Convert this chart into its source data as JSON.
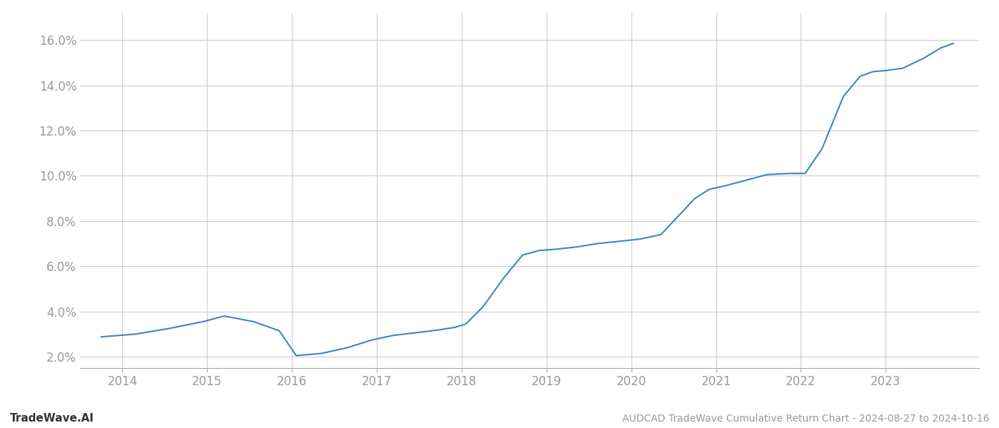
{
  "x_data": [
    2013.75,
    2014.15,
    2014.55,
    2014.95,
    2015.2,
    2015.55,
    2015.85,
    2016.05,
    2016.35,
    2016.65,
    2016.95,
    2017.2,
    2017.55,
    2017.75,
    2017.92,
    2018.05,
    2018.25,
    2018.5,
    2018.72,
    2018.92,
    2019.1,
    2019.35,
    2019.6,
    2019.85,
    2020.1,
    2020.35,
    2020.55,
    2020.75,
    2020.92,
    2021.1,
    2021.3,
    2021.6,
    2021.85,
    2022.05,
    2022.25,
    2022.5,
    2022.7,
    2022.85,
    2023.0,
    2023.2,
    2023.45,
    2023.65,
    2023.8
  ],
  "y_data": [
    2.88,
    3.0,
    3.25,
    3.55,
    3.8,
    3.55,
    3.15,
    2.05,
    2.15,
    2.4,
    2.75,
    2.95,
    3.1,
    3.2,
    3.3,
    3.45,
    4.2,
    5.5,
    6.5,
    6.7,
    6.75,
    6.85,
    7.0,
    7.1,
    7.2,
    7.4,
    8.2,
    9.0,
    9.4,
    9.55,
    9.75,
    10.05,
    10.1,
    10.1,
    11.2,
    13.5,
    14.4,
    14.6,
    14.65,
    14.75,
    15.2,
    15.65,
    15.85
  ],
  "line_color": "#3a86c8",
  "line_width": 1.5,
  "background_color": "#ffffff",
  "grid_color": "#cccccc",
  "tick_color": "#999999",
  "spine_color": "#aaaaaa",
  "title_text": "AUDCAD TradeWave Cumulative Return Chart - 2024-08-27 to 2024-10-16",
  "footer_left": "TradeWave.AI",
  "ylim_min": 1.5,
  "ylim_max": 17.2,
  "ytick_values": [
    2.0,
    4.0,
    6.0,
    8.0,
    10.0,
    12.0,
    14.0,
    16.0
  ],
  "xtick_years": [
    2014,
    2015,
    2016,
    2017,
    2018,
    2019,
    2020,
    2021,
    2022,
    2023
  ],
  "xlim_min": 2013.5,
  "xlim_max": 2024.1
}
